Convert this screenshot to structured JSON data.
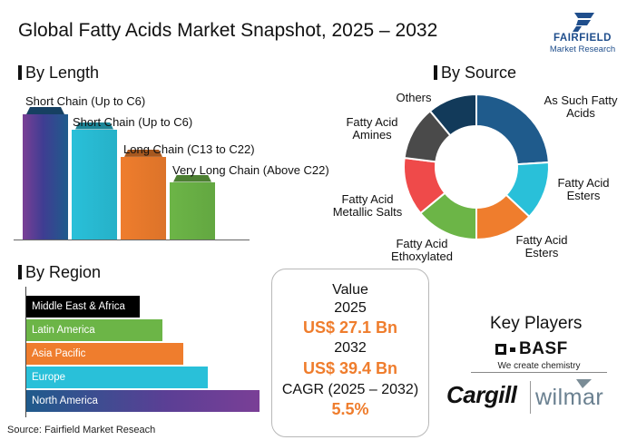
{
  "title": "Global Fatty Acids Market Snapshot, 2025 – 2032",
  "logo": {
    "top": "FAIRFIELD",
    "bottom": "Market Research"
  },
  "sections": {
    "length": "By Length",
    "source": "By Source",
    "region": "By Region"
  },
  "chart_data": [
    {
      "type": "bar",
      "title": "By Length",
      "categories": [
        "Short Chain (Up to C6)",
        "Short Chain (Up to C6)",
        "Long Chain (C13 to C22)",
        "Very Long Chain (Above C22)"
      ],
      "values": [
        100,
        88,
        66,
        46
      ],
      "colors": [
        "#5b3f95",
        "#29c0d9",
        "#ef7d2d",
        "#6cb547"
      ]
    },
    {
      "type": "pie",
      "title": "By Source",
      "categories": [
        "As Such Fatty Acids",
        "Fatty Acid Esters",
        "Fatty Acid Esters",
        "Fatty Acid Ethoxylated",
        "Fatty Acid Metallic Salts",
        "Fatty Acid Amines",
        "Others"
      ],
      "label_lines": [
        [
          "As Such Fatty",
          "Acids"
        ],
        [
          "Fatty Acid",
          "Esters"
        ],
        [
          "Fatty Acid",
          "Esters"
        ],
        [
          "Fatty Acid",
          "Ethoxylated"
        ],
        [
          "Fatty Acid",
          "Metallic Salts"
        ],
        [
          "Fatty Acid",
          "Amines"
        ],
        [
          "Others"
        ]
      ],
      "values": [
        24,
        13,
        13,
        14,
        13,
        12,
        11
      ],
      "colors": [
        "#1f5b8c",
        "#29c0d9",
        "#ef7d2d",
        "#6cb547",
        "#ef4a4a",
        "#4a4a4a",
        "#123a5a"
      ]
    },
    {
      "type": "bar",
      "orientation": "horizontal",
      "title": "By Region",
      "categories": [
        "Middle East & Africa",
        "Latin America",
        "Asia Pacific",
        "Europe",
        "North America"
      ],
      "values": [
        125,
        150,
        173,
        200,
        257
      ],
      "colors": [
        "#000000",
        "#6cb547",
        "#ef7d2d",
        "#29c0d9",
        "#5b3f95"
      ]
    }
  ],
  "value_box": {
    "label": "Value",
    "year1": "2025",
    "value1": "US$ 27.1 Bn",
    "year2": "2032",
    "value2": "US$ 39.4 Bn",
    "cagr_label": "CAGR (2025 – 2032)",
    "cagr_value": "5.5%"
  },
  "key_players": {
    "title": "Key Players",
    "basf": "BASF",
    "basf_tagline": "We create chemistry",
    "cargill": "Cargill",
    "wilmar": "wilmar"
  },
  "source": "Source: Fairfield Market Reseach"
}
